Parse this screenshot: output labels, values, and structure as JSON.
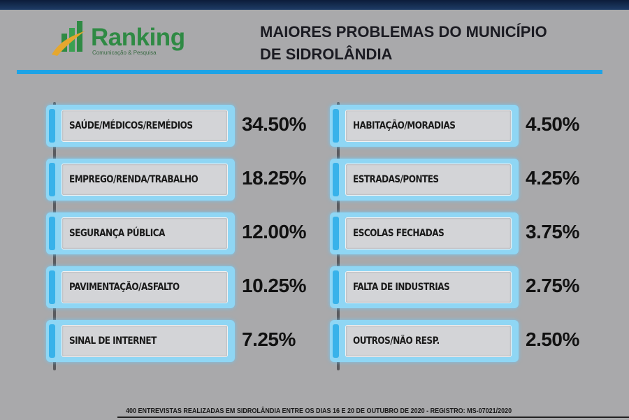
{
  "logo": {
    "name": "Ranking",
    "tagline": "Comunicação & Pesquisa",
    "icon": "bar-swoosh-logo-icon",
    "colors": {
      "bars": "#2f8a44",
      "swoosh": "#e5a72e"
    }
  },
  "title": {
    "line1": "MAIORES PROBLEMAS DO MUNICÍPIO",
    "line2": "DE SIDROLÂNDIA"
  },
  "colors": {
    "accent": "#1ea3e6",
    "card_outer": "#8fd6f4",
    "card_inner": "#d3d4d7",
    "background": "#a9a9ab"
  },
  "problems_left": [
    {
      "label": "SAÚDE/MÉDICOS/REMÉDIOS",
      "percent": "34.50%"
    },
    {
      "label": "EMPREGO/RENDA/TRABALHO",
      "percent": "18.25%"
    },
    {
      "label": "SEGURANÇA PÚBLICA",
      "percent": "12.00%"
    },
    {
      "label": "PAVIMENTAÇÃO/ASFALTO",
      "percent": "10.25%"
    },
    {
      "label": "SINAL DE INTERNET",
      "percent": "7.25%"
    }
  ],
  "problems_right": [
    {
      "label": "HABITAÇÃO/MORADIAS",
      "percent": "4.50%"
    },
    {
      "label": "ESTRADAS/PONTES",
      "percent": "4.25%"
    },
    {
      "label": "ESCOLAS FECHADAS",
      "percent": "3.75%"
    },
    {
      "label": "FALTA DE INDUSTRIAS",
      "percent": "2.75%"
    },
    {
      "label": "OUTROS/NÃO RESP.",
      "percent": "2.50%"
    }
  ],
  "footer": "400 ENTREVISTAS REALIZADAS EM SIDROLÂNDIA ENTRE OS DIAS 16 E 20 DE OUTUBRO DE 2020 - REGISTRO: MS-07021/2020"
}
